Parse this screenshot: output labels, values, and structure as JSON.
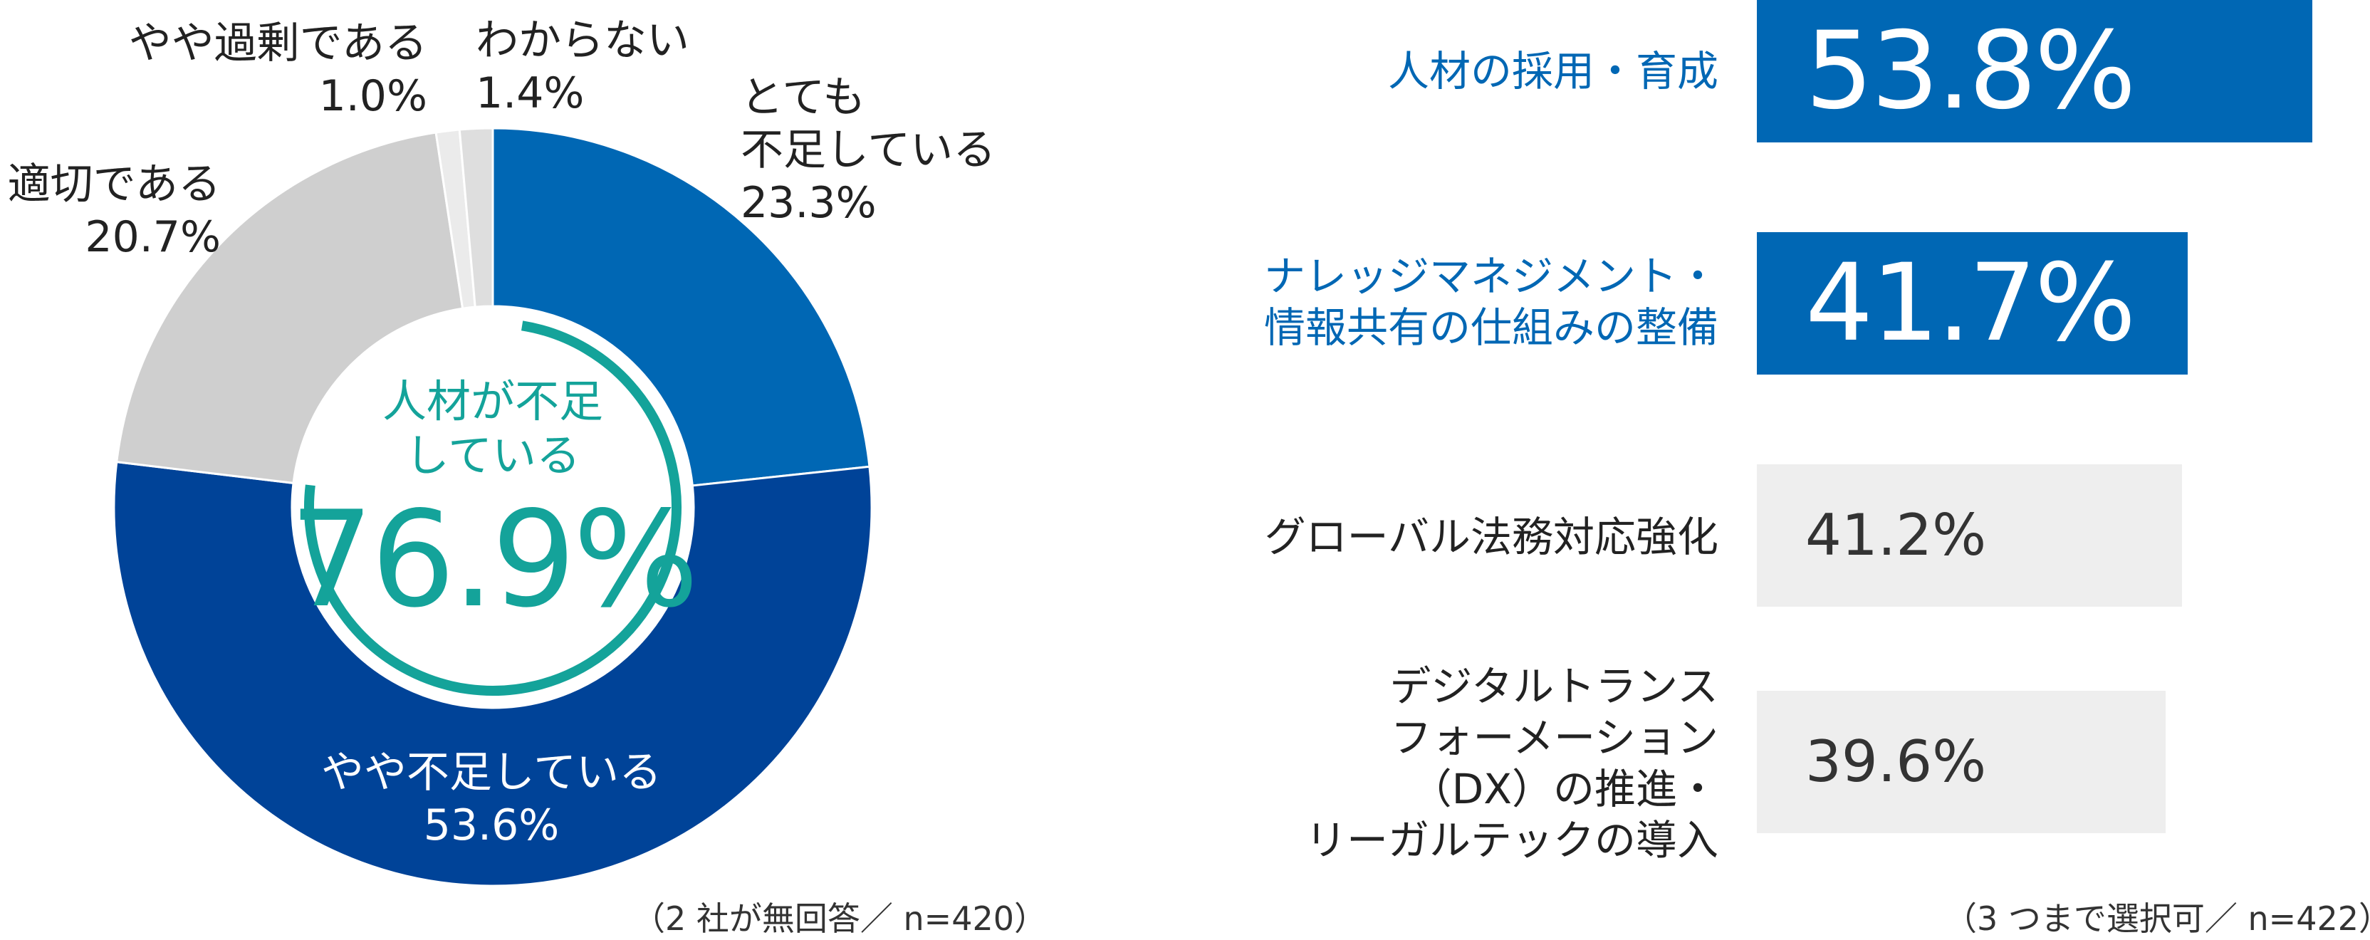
{
  "chart_data": [
    {
      "type": "pie",
      "title": "",
      "categories": [
        "とても不足している",
        "やや不足している",
        "適切である",
        "やや過剰である",
        "わからない"
      ],
      "values": [
        23.3,
        53.6,
        20.7,
        1.0,
        1.4
      ],
      "value_labels": [
        "23.3%",
        "53.6%",
        "20.7%",
        "1.0%",
        "1.4%"
      ],
      "colors": [
        "#0067b4",
        "#004398",
        "#cfcfcf",
        "#ebebeb",
        "#dedede"
      ],
      "donut": true,
      "center": {
        "caption_line1": "人材が不足",
        "caption_line2": "している",
        "value": "76.9%",
        "color": "#14a39a"
      },
      "note": "（2 社が無回答／ n=420）"
    },
    {
      "type": "bar",
      "orientation": "horizontal",
      "title": "",
      "categories": [
        [
          "人材の採用・育成"
        ],
        [
          "ナレッジマネジメント・",
          "情報共有の仕組みの整備"
        ],
        [
          "グローバル法務対応強化"
        ],
        [
          "デジタルトランス",
          "フォーメーション",
          "（DX）の推進・",
          "リーガルテックの導入"
        ]
      ],
      "values": [
        53.8,
        41.7,
        41.2,
        39.6
      ],
      "value_labels": [
        "53.8%",
        "41.7%",
        "41.2%",
        "39.6%"
      ],
      "highlight": [
        true,
        true,
        false,
        false
      ],
      "colors": {
        "highlight": "#0067b4",
        "normal": "#eeeeee",
        "highlight_label": "#0067b4",
        "normal_label": "#222222"
      },
      "note": "（3 つまで選択可／ n=422）"
    }
  ]
}
